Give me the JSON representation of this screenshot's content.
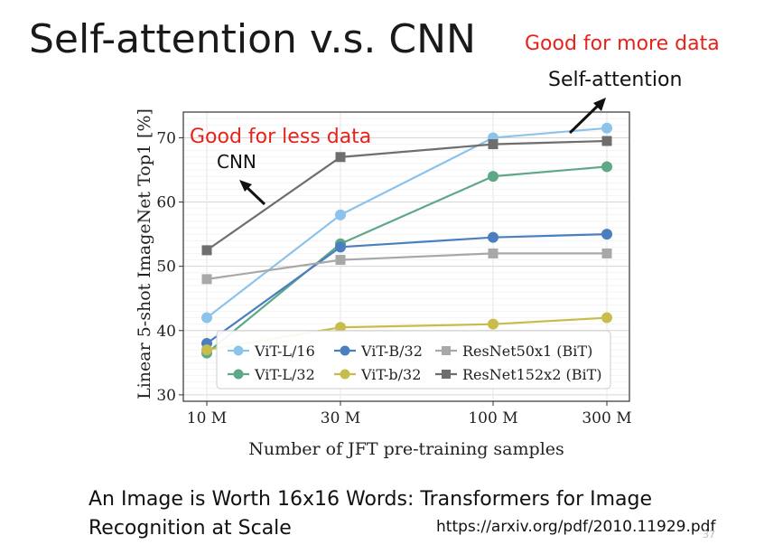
{
  "slide": {
    "title": "Self-attention v.s. CNN",
    "note_more_data": "Good for more data",
    "note_self_attention": "Self-attention",
    "caption_line1": "An Image is Worth 16x16 Words: Transformers for Image",
    "caption_line2": "Recognition at Scale",
    "url": "https://arxiv.org/pdf/2010.11929.pdf",
    "page_number": "37"
  },
  "chart_data": {
    "type": "line",
    "title": "",
    "xlabel": "Number of JFT pre-training samples",
    "ylabel": "Linear 5-shot ImageNet Top1 [%]",
    "categories": [
      "10 M",
      "30 M",
      "100 M",
      "300 M"
    ],
    "ylim": [
      29,
      74
    ],
    "yticks": [
      30,
      40,
      50,
      60,
      70
    ],
    "grid": true,
    "legend_position": "bottom",
    "annotations": {
      "less_data": "Good for less data",
      "cnn": "CNN"
    },
    "series": [
      {
        "name": "ViT-L/16",
        "color": "#8cc3ea",
        "marker": "circle",
        "values": [
          42,
          58,
          70,
          71.5
        ]
      },
      {
        "name": "ViT-L/32",
        "color": "#5ea887",
        "marker": "circle",
        "values": [
          36.5,
          53.5,
          64,
          65.5
        ]
      },
      {
        "name": "ViT-B/32",
        "color": "#4a7fbf",
        "marker": "circle",
        "values": [
          38,
          53,
          54.5,
          55
        ]
      },
      {
        "name": "ViT-b/32",
        "color": "#c8bc4c",
        "marker": "circle",
        "values": [
          37,
          40.5,
          41,
          42
        ]
      },
      {
        "name": "ResNet50x1 (BiT)",
        "color": "#a8a8a8",
        "marker": "square",
        "values": [
          48,
          51,
          52,
          52
        ]
      },
      {
        "name": "ResNet152x2 (BiT)",
        "color": "#6e6e6e",
        "marker": "square",
        "values": [
          52.5,
          67,
          69,
          69.5
        ]
      }
    ]
  }
}
